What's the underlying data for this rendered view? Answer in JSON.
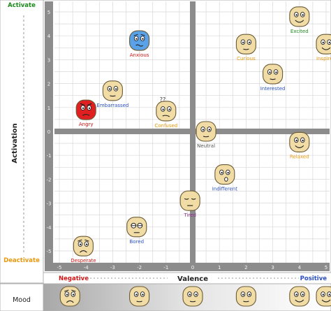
{
  "labels": {
    "activate": "Activate",
    "deactivate": "Deactivate",
    "activation": "Activation",
    "valence": "Valence",
    "negative": "Negative",
    "positive": "Positive",
    "mood": "Mood"
  },
  "colors": {
    "activate": "#1b8a1b",
    "deactivate": "#e8980c",
    "negative": "#d21414",
    "positive": "#2a4fc4",
    "face_fill": "#f0dca4",
    "face_stroke": "#6b5a36",
    "grid_band": "#8c8c8c",
    "grid_line": "#d8d8d8"
  },
  "axes": {
    "x_ticks": [
      "-5",
      "-4",
      "-3",
      "-2",
      "-1",
      "0",
      "1",
      "2",
      "3",
      "4",
      "5"
    ],
    "y_ticks": [
      "5",
      "4",
      "3",
      "2",
      "1",
      "0",
      "-1",
      "-2",
      "-3",
      "-4",
      "-5"
    ],
    "xlim": [
      -5.3,
      5.3
    ],
    "ylim": [
      -5.3,
      5.3
    ]
  },
  "emotions": [
    {
      "label": "Excited",
      "valence": 4.0,
      "activation": 4.8,
      "color": "#1b8a1b",
      "face": "smile-icon",
      "fill": "#f0dca4"
    },
    {
      "label": "Anxious",
      "valence": -2.0,
      "activation": 3.8,
      "color": "#d21414",
      "face": "anxious-icon",
      "fill": "#5aa2e8"
    },
    {
      "label": "Curious",
      "valence": 2.0,
      "activation": 3.65,
      "color": "#e8980c",
      "face": "neutral-icon",
      "fill": "#f0dca4"
    },
    {
      "label": "Inspired",
      "valence": 5.0,
      "activation": 3.65,
      "color": "#e8980c",
      "face": "smile-icon",
      "fill": "#f0dca4"
    },
    {
      "label": "Interested",
      "valence": 3.0,
      "activation": 2.4,
      "color": "#2a4fc4",
      "face": "neutral-icon",
      "fill": "#f0dca4"
    },
    {
      "label": "Embarrassed",
      "valence": -3.0,
      "activation": 1.7,
      "color": "#2a4fc4",
      "face": "neutral-icon",
      "fill": "#f0dca4"
    },
    {
      "label": "Angry",
      "valence": -4.0,
      "activation": 0.9,
      "color": "#d21414",
      "face": "angry-icon",
      "fill": "#e02020"
    },
    {
      "label": "Confused",
      "valence": -1.0,
      "activation": 0.85,
      "color": "#e8980c",
      "face": "confused-icon",
      "fill": "#f0dca4"
    },
    {
      "label": "Neutral",
      "valence": 0.5,
      "activation": 0.0,
      "color": "#555555",
      "face": "neutral-icon",
      "fill": "#f0dca4"
    },
    {
      "label": "Relaxed",
      "valence": 4.0,
      "activation": -0.45,
      "color": "#e8980c",
      "face": "smile-icon",
      "fill": "#f0dca4"
    },
    {
      "label": "Indifferent",
      "valence": 1.2,
      "activation": -1.8,
      "color": "#2a4fc4",
      "face": "indifferent-icon",
      "fill": "#f0dca4"
    },
    {
      "label": "Tired",
      "valence": -0.1,
      "activation": -2.9,
      "color": "#8b2a8b",
      "face": "tired-icon",
      "fill": "#f0dca4"
    },
    {
      "label": "Bored",
      "valence": -2.1,
      "activation": -4.0,
      "color": "#2a4fc4",
      "face": "bored-icon",
      "fill": "#f0dca4"
    },
    {
      "label": "Desperate",
      "valence": -4.1,
      "activation": -4.8,
      "color": "#d21414",
      "face": "sad-icon",
      "fill": "#f0dca4"
    }
  ],
  "mood_faces": [
    {
      "face": "sad-icon"
    },
    {
      "face": "neutral-icon"
    },
    {
      "face": "neutral-icon"
    },
    {
      "face": "neutral-icon"
    },
    {
      "face": "smile-icon"
    },
    {
      "face": "smile-icon"
    }
  ]
}
